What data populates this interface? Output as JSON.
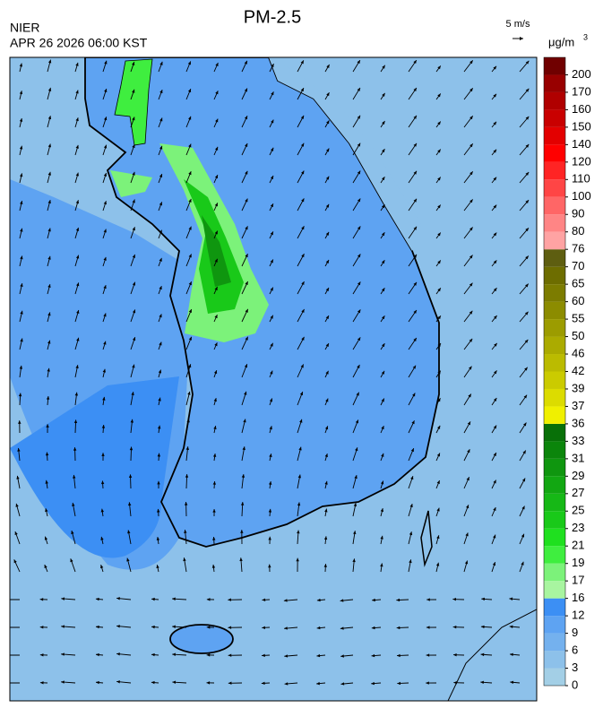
{
  "header": {
    "title": "PM-2.5",
    "agency": "NIER",
    "timestamp": "APR 26 2026 06:00 KST",
    "wind_scale": "5 m/s",
    "unit": "μg/m",
    "unit_superscript": "3"
  },
  "colorbar": {
    "levels": [
      {
        "value": 0,
        "color": "#a3cfe6"
      },
      {
        "value": 3,
        "color": "#8dc1ea"
      },
      {
        "value": 6,
        "color": "#74b1ee"
      },
      {
        "value": 9,
        "color": "#5ea3f2"
      },
      {
        "value": 12,
        "color": "#3c8ff4"
      },
      {
        "value": 16,
        "color": "#a8f5a0"
      },
      {
        "value": 17,
        "color": "#7cf27a"
      },
      {
        "value": 19,
        "color": "#3fee3f"
      },
      {
        "value": 21,
        "color": "#1fe01f"
      },
      {
        "value": 23,
        "color": "#19c919"
      },
      {
        "value": 25,
        "color": "#16b816"
      },
      {
        "value": 27,
        "color": "#12a712"
      },
      {
        "value": 29,
        "color": "#0f960f"
      },
      {
        "value": 31,
        "color": "#0b850b"
      },
      {
        "value": 33,
        "color": "#087008"
      },
      {
        "value": 36,
        "color": "#f0f000"
      },
      {
        "value": 37,
        "color": "#dcdc00"
      },
      {
        "value": 39,
        "color": "#cbcb00"
      },
      {
        "value": 42,
        "color": "#bbbb00"
      },
      {
        "value": 46,
        "color": "#abab00"
      },
      {
        "value": 50,
        "color": "#9c9c00"
      },
      {
        "value": 55,
        "color": "#8c8c00"
      },
      {
        "value": 60,
        "color": "#7c7c00"
      },
      {
        "value": 65,
        "color": "#6d6d00"
      },
      {
        "value": 70,
        "color": "#5e5e10"
      },
      {
        "value": 76,
        "color": "#ffa3a3"
      },
      {
        "value": 80,
        "color": "#ff8585"
      },
      {
        "value": 90,
        "color": "#ff6666"
      },
      {
        "value": 100,
        "color": "#ff4545"
      },
      {
        "value": 110,
        "color": "#ff2424"
      },
      {
        "value": 120,
        "color": "#ff0000"
      },
      {
        "value": 140,
        "color": "#e30000"
      },
      {
        "value": 150,
        "color": "#c90000"
      },
      {
        "value": 160,
        "color": "#b00000"
      },
      {
        "value": 170,
        "color": "#980000"
      },
      {
        "value": 200,
        "color": "#700000"
      }
    ]
  }
}
